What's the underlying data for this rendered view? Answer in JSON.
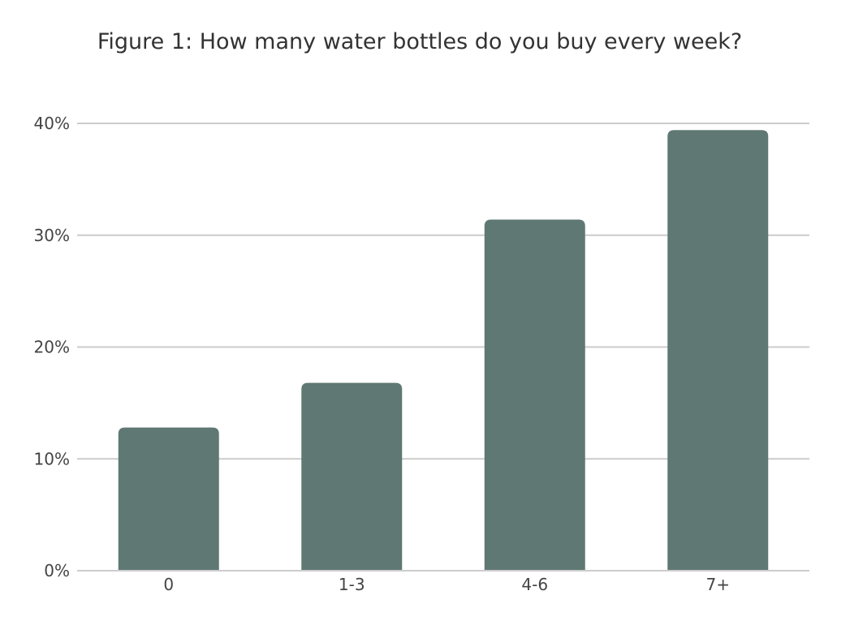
{
  "chart_data": {
    "type": "bar",
    "title": "Figure 1: How many water bottles do you buy every week?",
    "xlabel": "",
    "ylabel": "",
    "categories": [
      "0",
      "1-3",
      "4-6",
      "7+"
    ],
    "values": [
      12.8,
      16.8,
      31.4,
      39.4
    ],
    "ylim": [
      0,
      40
    ],
    "yticks": [
      0,
      10,
      20,
      30,
      40
    ],
    "ytick_labels": [
      "0%",
      "10%",
      "20%",
      "30%",
      "40%"
    ],
    "grid": true,
    "legend": "none",
    "bar_color": "#607874"
  }
}
